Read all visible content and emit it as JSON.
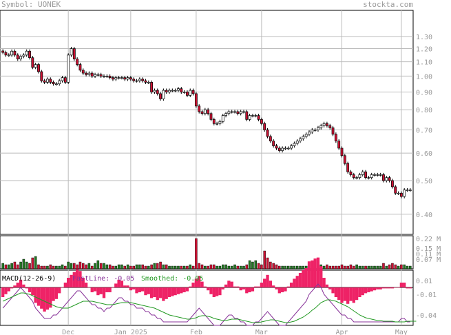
{
  "header": {
    "symbol_text": "Symbol: UONEK",
    "brand_text": "stockta.com"
  },
  "colors": {
    "up": "#ffffff",
    "down": "#cc1133",
    "vol_up": "#227722",
    "vol_down": "#cc1133",
    "grid": "#bbbbbb",
    "fastline": "#883399",
    "smoothed": "#229922",
    "hist": "#ee2266"
  },
  "chart_data": [
    {
      "type": "candlestick",
      "title": "",
      "x_labels": [
        "Dec",
        "Jan 2025",
        "Feb",
        "Mar",
        "Apr",
        "May"
      ],
      "y_ticks": [
        "1.30",
        "1.20",
        "1.10",
        "1.00",
        "0.90",
        "0.80",
        "0.70",
        "0.60",
        "0.50",
        "0.40"
      ],
      "y_scale": "log",
      "ylim": [
        0.35,
        1.38
      ],
      "close": [
        1.17,
        1.15,
        1.15,
        1.18,
        1.15,
        1.12,
        1.14,
        1.15,
        1.18,
        1.13,
        1.06,
        1.08,
        1.03,
        0.97,
        0.96,
        0.98,
        0.96,
        0.95,
        0.95,
        0.97,
        0.99,
        0.96,
        1.15,
        1.2,
        1.12,
        1.08,
        1.04,
        1.02,
        1.01,
        1.02,
        1.0,
        1.01,
        1.01,
        1.0,
        1.0,
        1.0,
        0.99,
        0.98,
        0.99,
        0.99,
        0.99,
        0.98,
        0.99,
        0.98,
        0.97,
        0.97,
        0.98,
        0.97,
        0.96,
        0.96,
        0.9,
        0.91,
        0.89,
        0.86,
        0.91,
        0.9,
        0.91,
        0.91,
        0.91,
        0.92,
        0.9,
        0.9,
        0.88,
        0.91,
        0.89,
        0.82,
        0.79,
        0.78,
        0.8,
        0.78,
        0.75,
        0.73,
        0.73,
        0.74,
        0.77,
        0.78,
        0.79,
        0.79,
        0.79,
        0.78,
        0.79,
        0.79,
        0.75,
        0.77,
        0.77,
        0.77,
        0.75,
        0.73,
        0.7,
        0.67,
        0.65,
        0.63,
        0.62,
        0.61,
        0.62,
        0.62,
        0.62,
        0.63,
        0.64,
        0.65,
        0.66,
        0.67,
        0.68,
        0.69,
        0.7,
        0.7,
        0.71,
        0.72,
        0.73,
        0.72,
        0.71,
        0.68,
        0.65,
        0.62,
        0.59,
        0.56,
        0.53,
        0.52,
        0.51,
        0.51,
        0.52,
        0.53,
        0.51,
        0.51,
        0.52,
        0.52,
        0.52,
        0.52,
        0.5,
        0.51,
        0.5,
        0.48,
        0.46,
        0.46,
        0.45,
        0.47,
        0.47,
        0.47
      ],
      "volume": [
        0.04,
        0.03,
        0.03,
        0.04,
        0.05,
        0.03,
        0.05,
        0.07,
        0.05,
        0.04,
        0.08,
        0.09,
        0.03,
        0.02,
        0.02,
        0.02,
        0.03,
        0.02,
        0.02,
        0.02,
        0.03,
        0.02,
        0.05,
        0.04,
        0.04,
        0.03,
        0.05,
        0.04,
        0.03,
        0.04,
        0.02,
        0.04,
        0.06,
        0.04,
        0.04,
        0.03,
        0.03,
        0.02,
        0.02,
        0.03,
        0.03,
        0.02,
        0.03,
        0.02,
        0.02,
        0.03,
        0.03,
        0.03,
        0.02,
        0.02,
        0.03,
        0.04,
        0.04,
        0.05,
        0.03,
        0.03,
        0.02,
        0.02,
        0.02,
        0.02,
        0.02,
        0.02,
        0.02,
        0.03,
        0.02,
        0.22,
        0.04,
        0.03,
        0.02,
        0.02,
        0.03,
        0.03,
        0.02,
        0.02,
        0.03,
        0.03,
        0.02,
        0.02,
        0.03,
        0.02,
        0.02,
        0.02,
        0.03,
        0.06,
        0.05,
        0.06,
        0.04,
        0.03,
        0.13,
        0.08,
        0.05,
        0.04,
        0.03,
        0.02,
        0.02,
        0.02,
        0.02,
        0.02,
        0.02,
        0.02,
        0.02,
        0.02,
        0.02,
        0.02,
        0.02,
        0.02,
        0.05,
        0.03,
        0.02,
        0.03,
        0.02,
        0.02,
        0.02,
        0.02,
        0.03,
        0.02,
        0.02,
        0.03,
        0.02,
        0.03,
        0.02,
        0.02,
        0.02,
        0.02,
        0.02,
        0.02,
        0.02,
        0.02,
        0.04,
        0.02,
        0.03,
        0.04,
        0.03,
        0.02,
        0.03,
        0.03,
        0.02,
        0.02
      ],
      "volume_ticks": [
        "0.22 M",
        "0.15 M",
        "0.11 M",
        "0.07 M"
      ],
      "volume_max": 0.22
    },
    {
      "type": "macd",
      "label": "MACD(12-26-9)",
      "fast_label": "FastLine: -0.05",
      "smoothed_label": "Smoothed: -0.05",
      "y_ticks": [
        "0.01",
        "-0.01",
        "-0.04"
      ],
      "ylim": [
        -0.055,
        0.025
      ],
      "fastline": [
        -0.03,
        -0.025,
        -0.02,
        -0.015,
        -0.01,
        -0.005,
        0.0,
        -0.005,
        -0.01,
        -0.015,
        -0.02,
        -0.03,
        -0.035,
        -0.04,
        -0.045,
        -0.045,
        -0.045,
        -0.04,
        -0.04,
        -0.035,
        -0.03,
        -0.025,
        -0.02,
        -0.015,
        -0.01,
        -0.005,
        -0.005,
        -0.01,
        -0.015,
        -0.02,
        -0.025,
        -0.025,
        -0.03,
        -0.03,
        -0.035,
        -0.03,
        -0.03,
        -0.025,
        -0.02,
        -0.015,
        -0.015,
        -0.02,
        -0.02,
        -0.025,
        -0.025,
        -0.03,
        -0.03,
        -0.03,
        -0.035,
        -0.035,
        -0.04,
        -0.04,
        -0.045,
        -0.045,
        -0.05,
        -0.05,
        -0.05,
        -0.05,
        -0.05,
        -0.05,
        -0.05,
        -0.05,
        -0.05,
        -0.045,
        -0.04,
        -0.035,
        -0.03,
        -0.035,
        -0.04,
        -0.045,
        -0.05,
        -0.055,
        -0.055,
        -0.055,
        -0.05,
        -0.045,
        -0.04,
        -0.04,
        -0.045,
        -0.045,
        -0.05,
        -0.05,
        -0.055,
        -0.055,
        -0.055,
        -0.05,
        -0.05,
        -0.045,
        -0.04,
        -0.035,
        -0.04,
        -0.045,
        -0.05,
        -0.055,
        -0.055,
        -0.055,
        -0.05,
        -0.045,
        -0.04,
        -0.035,
        -0.03,
        -0.025,
        -0.02,
        -0.01,
        -0.005,
        0.0,
        0.005,
        0.0,
        -0.01,
        -0.015,
        -0.02,
        -0.025,
        -0.03,
        -0.035,
        -0.04,
        -0.04,
        -0.045,
        -0.045,
        -0.05,
        -0.05,
        -0.05,
        -0.05,
        -0.05,
        -0.05,
        -0.05,
        -0.05,
        -0.05,
        -0.05,
        -0.05,
        -0.05,
        -0.05,
        -0.05,
        -0.05,
        -0.05,
        -0.045,
        -0.045,
        -0.05,
        -0.05
      ],
      "smoothed": [
        -0.02,
        -0.018,
        -0.016,
        -0.014,
        -0.012,
        -0.01,
        -0.008,
        -0.008,
        -0.009,
        -0.01,
        -0.012,
        -0.014,
        -0.016,
        -0.018,
        -0.02,
        -0.022,
        -0.024,
        -0.026,
        -0.028,
        -0.029,
        -0.03,
        -0.03,
        -0.03,
        -0.028,
        -0.026,
        -0.024,
        -0.022,
        -0.02,
        -0.02,
        -0.02,
        -0.02,
        -0.021,
        -0.022,
        -0.023,
        -0.024,
        -0.025,
        -0.025,
        -0.025,
        -0.024,
        -0.023,
        -0.022,
        -0.022,
        -0.022,
        -0.022,
        -0.023,
        -0.024,
        -0.025,
        -0.026,
        -0.027,
        -0.028,
        -0.029,
        -0.03,
        -0.032,
        -0.034,
        -0.036,
        -0.038,
        -0.04,
        -0.041,
        -0.042,
        -0.043,
        -0.044,
        -0.045,
        -0.046,
        -0.046,
        -0.045,
        -0.044,
        -0.042,
        -0.041,
        -0.041,
        -0.042,
        -0.043,
        -0.045,
        -0.046,
        -0.047,
        -0.048,
        -0.048,
        -0.047,
        -0.046,
        -0.046,
        -0.046,
        -0.047,
        -0.048,
        -0.049,
        -0.05,
        -0.051,
        -0.051,
        -0.051,
        -0.05,
        -0.049,
        -0.048,
        -0.047,
        -0.047,
        -0.048,
        -0.049,
        -0.05,
        -0.051,
        -0.051,
        -0.05,
        -0.049,
        -0.047,
        -0.045,
        -0.043,
        -0.04,
        -0.037,
        -0.033,
        -0.03,
        -0.026,
        -0.022,
        -0.02,
        -0.018,
        -0.018,
        -0.019,
        -0.02,
        -0.022,
        -0.024,
        -0.026,
        -0.028,
        -0.031,
        -0.034,
        -0.037,
        -0.04,
        -0.042,
        -0.044,
        -0.045,
        -0.046,
        -0.047,
        -0.048,
        -0.048,
        -0.049,
        -0.049,
        -0.049,
        -0.049,
        -0.05,
        -0.05,
        -0.05,
        -0.05,
        -0.049,
        -0.049,
        -0.049,
        -0.049
      ]
    }
  ]
}
